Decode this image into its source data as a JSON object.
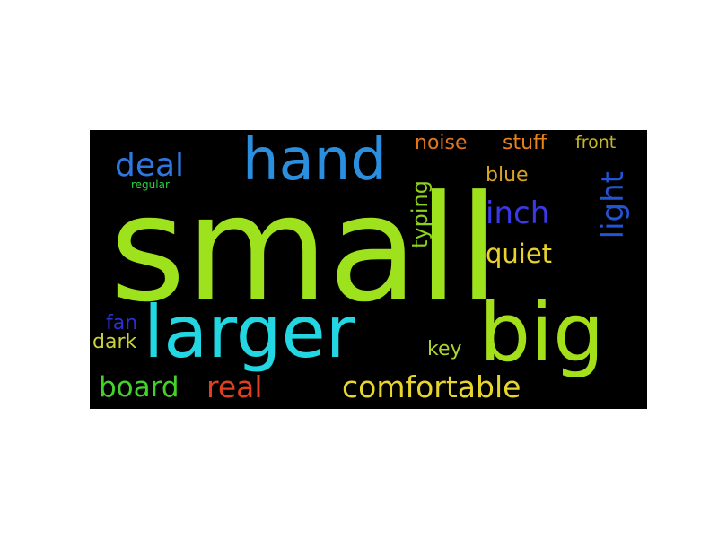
{
  "words": [
    {
      "text": "small",
      "color": "#9ee21d"
    },
    {
      "text": "hand",
      "color": "#2b8fe0"
    },
    {
      "text": "larger",
      "color": "#22d6e2"
    },
    {
      "text": "big",
      "color": "#a4e01a"
    },
    {
      "text": "deal",
      "color": "#2f77e0"
    },
    {
      "text": "regular",
      "color": "#2bd13f"
    },
    {
      "text": "noise",
      "color": "#e2741c"
    },
    {
      "text": "stuff",
      "color": "#e7821d"
    },
    {
      "text": "front",
      "color": "#c6b72a"
    },
    {
      "text": "blue",
      "color": "#d6a327"
    },
    {
      "text": "inch",
      "color": "#3b38e6"
    },
    {
      "text": "light",
      "color": "#2154d6"
    },
    {
      "text": "typing",
      "color": "#8fcf1d"
    },
    {
      "text": "quiet",
      "color": "#e8d12a"
    },
    {
      "text": "fan",
      "color": "#2b2fd4"
    },
    {
      "text": "dark",
      "color": "#c8d23a"
    },
    {
      "text": "key",
      "color": "#acd233"
    },
    {
      "text": "board",
      "color": "#45d12b"
    },
    {
      "text": "real",
      "color": "#e0401e"
    },
    {
      "text": "comfortable",
      "color": "#e6d52c"
    }
  ]
}
